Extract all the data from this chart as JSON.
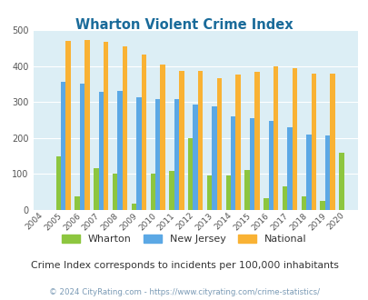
{
  "title": "Wharton Violent Crime Index",
  "years": [
    2004,
    2005,
    2006,
    2007,
    2008,
    2009,
    2010,
    2011,
    2012,
    2013,
    2014,
    2015,
    2016,
    2017,
    2018,
    2019,
    2020
  ],
  "wharton": [
    0,
    148,
    37,
    115,
    102,
    18,
    100,
    108,
    200,
    95,
    95,
    110,
    32,
    65,
    37,
    25,
    158
  ],
  "new_jersey": [
    0,
    355,
    350,
    328,
    330,
    312,
    309,
    309,
    292,
    288,
    261,
    255,
    248,
    230,
    210,
    207,
    0
  ],
  "national": [
    0,
    469,
    473,
    467,
    455,
    432,
    405,
    387,
    387,
    367,
    377,
    384,
    398,
    394,
    380,
    379,
    0
  ],
  "wharton_color": "#8dc63f",
  "nj_color": "#5ba8e5",
  "national_color": "#f9b234",
  "bg_color": "#dceef5",
  "title_color": "#1a6b9a",
  "subtitle": "Crime Index corresponds to incidents per 100,000 inhabitants",
  "footer": "© 2024 CityRating.com - https://www.cityrating.com/crime-statistics/",
  "ylim": [
    0,
    500
  ],
  "yticks": [
    0,
    100,
    200,
    300,
    400,
    500
  ]
}
